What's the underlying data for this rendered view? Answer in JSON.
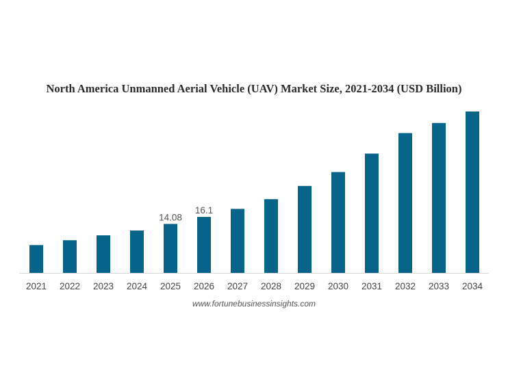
{
  "chart_data": {
    "type": "bar",
    "title": "North America Unmanned Aerial Vehicle (UAV) Market Size, 2021-2034 (USD Billion)",
    "categories": [
      "2021",
      "2022",
      "2023",
      "2024",
      "2025",
      "2026",
      "2027",
      "2028",
      "2029",
      "2030",
      "2031",
      "2032",
      "2033",
      "2034"
    ],
    "values": [
      8.0,
      9.4,
      10.8,
      12.2,
      14.08,
      16.1,
      18.4,
      21.2,
      25.0,
      29.0,
      34.3,
      40.2,
      43.1,
      46.4
    ],
    "data_labels": [
      {
        "index": 4,
        "text": "14.08"
      },
      {
        "index": 5,
        "text": "16.1"
      }
    ],
    "ylim": [
      0,
      46.4
    ],
    "bar_color": "#06648a",
    "axis_color": "#d9d9d9",
    "grid": false,
    "legend": "none"
  },
  "source": "www.fortunebusinessinsights.com"
}
